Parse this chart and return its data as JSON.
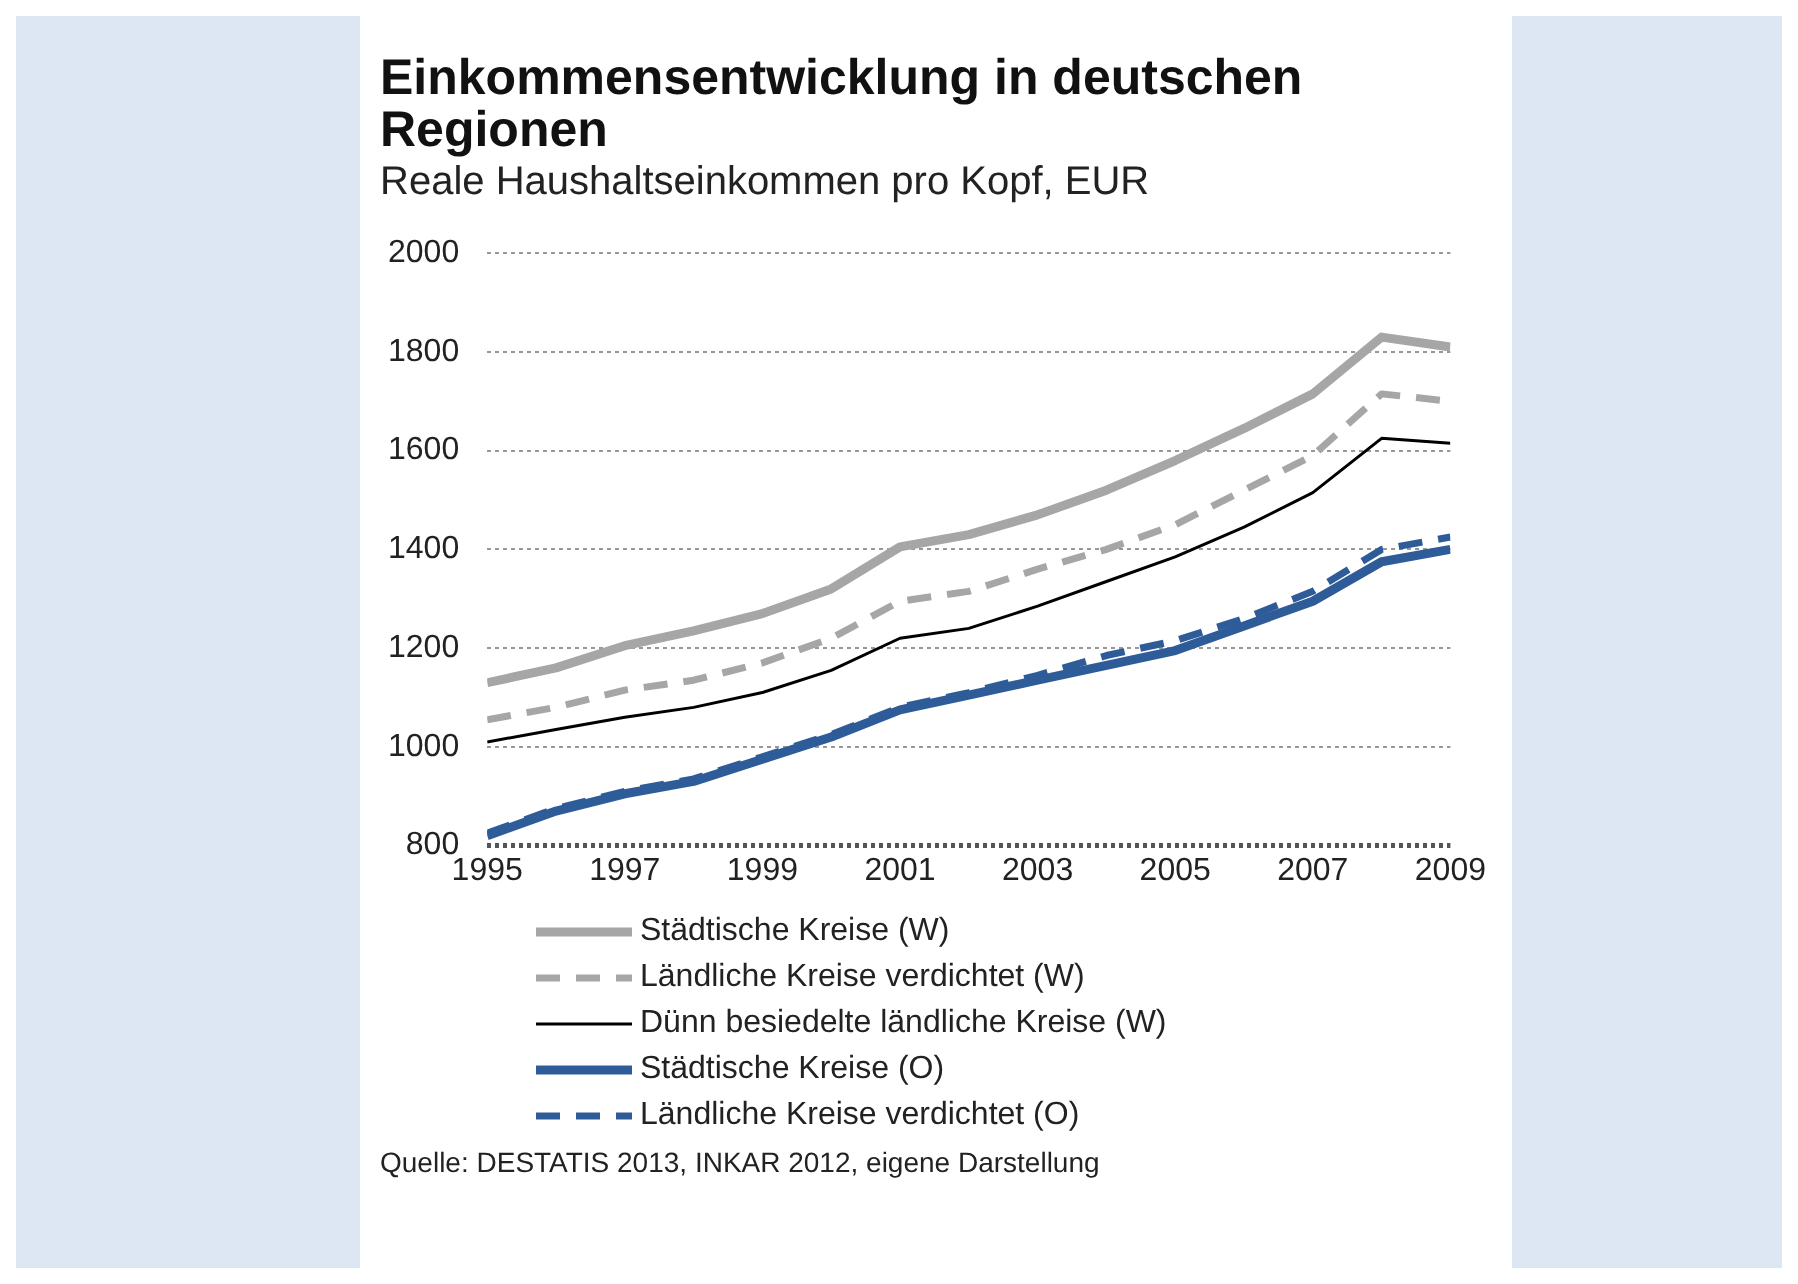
{
  "chart_data": {
    "type": "line",
    "title": "Einkommensentwicklung in deutschen Regionen",
    "subtitle": "Reale Haushaltseinkommen pro Kopf, EUR",
    "x": [
      1995,
      1996,
      1997,
      1998,
      1999,
      2000,
      2001,
      2002,
      2003,
      2004,
      2005,
      2006,
      2007,
      2008,
      2009
    ],
    "xlim": [
      1995,
      2009
    ],
    "xticks": [
      1995,
      1997,
      1999,
      2001,
      2003,
      2005,
      2007,
      2009
    ],
    "ylim": [
      800,
      2000
    ],
    "yticks": [
      800,
      1000,
      1200,
      1400,
      1600,
      1800,
      2000
    ],
    "grid": "y",
    "legend": "bottom",
    "marker": "none",
    "series": [
      {
        "name": "Städtische Kreise (W)",
        "color": "#a6a6a6",
        "line_style": "solid",
        "values": [
          1130,
          1160,
          1205,
          1235,
          1270,
          1320,
          1405,
          1430,
          1470,
          1520,
          1580,
          1645,
          1715,
          1830,
          1810
        ]
      },
      {
        "name": "Ländliche Kreise verdichtet (W)",
        "color": "#a6a6a6",
        "line_style": "dashed",
        "values": [
          1055,
          1080,
          1115,
          1135,
          1170,
          1220,
          1295,
          1315,
          1360,
          1400,
          1450,
          1520,
          1590,
          1715,
          1700
        ]
      },
      {
        "name": "Dünn besiedelte ländliche Kreise (W)",
        "color": "#000000",
        "line_style": "solid",
        "values": [
          1010,
          1035,
          1060,
          1080,
          1110,
          1155,
          1220,
          1240,
          1285,
          1335,
          1385,
          1445,
          1515,
          1625,
          1615
        ]
      },
      {
        "name": "Städtische Kreise (O)",
        "color": "#2e5c98",
        "line_style": "solid",
        "values": [
          820,
          870,
          905,
          930,
          975,
          1020,
          1075,
          1105,
          1135,
          1165,
          1195,
          1245,
          1295,
          1375,
          1400
        ]
      },
      {
        "name": "Ländliche Kreise verdichtet (O)",
        "color": "#2e5c98",
        "line_style": "dashed",
        "values": [
          825,
          875,
          910,
          935,
          980,
          1025,
          1080,
          1110,
          1145,
          1185,
          1215,
          1260,
          1315,
          1400,
          1425
        ]
      }
    ],
    "annotations": [
      "Quelle: DESTATIS 2013, INKAR 2012, eigene Darstellung"
    ]
  }
}
